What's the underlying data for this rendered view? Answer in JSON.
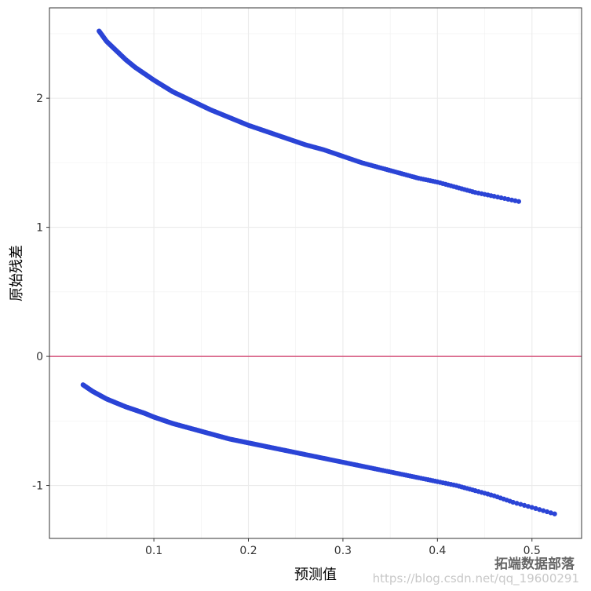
{
  "chart_data": {
    "type": "scatter",
    "title": "",
    "xlabel": "预测值",
    "ylabel": "原始残差",
    "xlim": [
      -0.0105,
      0.5525
    ],
    "ylim": [
      -1.41,
      2.7
    ],
    "x_ticks": [
      0.1,
      0.2,
      0.3,
      0.4,
      0.5
    ],
    "y_ticks": [
      -1,
      0,
      1,
      2
    ],
    "x_tick_labels": [
      "0.1",
      "0.2",
      "0.3",
      "0.4",
      "0.5"
    ],
    "y_tick_labels": [
      "-1",
      "0",
      "1",
      "2"
    ],
    "grid": true,
    "reference_line": {
      "y": 0,
      "color": "#d4517a"
    },
    "point_color": "#2b44d6",
    "series": [
      {
        "x": [
          0.042,
          0.05,
          0.06,
          0.07,
          0.08,
          0.09,
          0.1,
          0.12,
          0.14,
          0.16,
          0.18,
          0.2,
          0.22,
          0.24,
          0.26,
          0.28,
          0.3,
          0.32,
          0.34,
          0.36,
          0.38,
          0.4,
          0.42,
          0.44,
          0.46,
          0.486
        ],
        "y": [
          2.52,
          2.44,
          2.37,
          2.3,
          2.24,
          2.19,
          2.14,
          2.05,
          1.98,
          1.91,
          1.85,
          1.79,
          1.74,
          1.69,
          1.64,
          1.6,
          1.55,
          1.5,
          1.46,
          1.42,
          1.38,
          1.35,
          1.31,
          1.27,
          1.24,
          1.2
        ]
      },
      {
        "x": [
          0.025,
          0.035,
          0.05,
          0.07,
          0.09,
          0.1,
          0.12,
          0.14,
          0.16,
          0.18,
          0.2,
          0.22,
          0.24,
          0.26,
          0.28,
          0.3,
          0.32,
          0.34,
          0.36,
          0.38,
          0.4,
          0.42,
          0.44,
          0.46,
          0.48,
          0.5,
          0.524
        ],
        "y": [
          -0.22,
          -0.27,
          -0.33,
          -0.39,
          -0.44,
          -0.47,
          -0.52,
          -0.56,
          -0.6,
          -0.64,
          -0.67,
          -0.7,
          -0.73,
          -0.76,
          -0.79,
          -0.82,
          -0.85,
          -0.88,
          -0.91,
          -0.94,
          -0.97,
          -1.0,
          -1.04,
          -1.08,
          -1.13,
          -1.17,
          -1.22
        ]
      }
    ]
  },
  "watermark": {
    "brand": "拓端数据部落",
    "url": "https://blog.csdn.net/qq_19600291"
  }
}
